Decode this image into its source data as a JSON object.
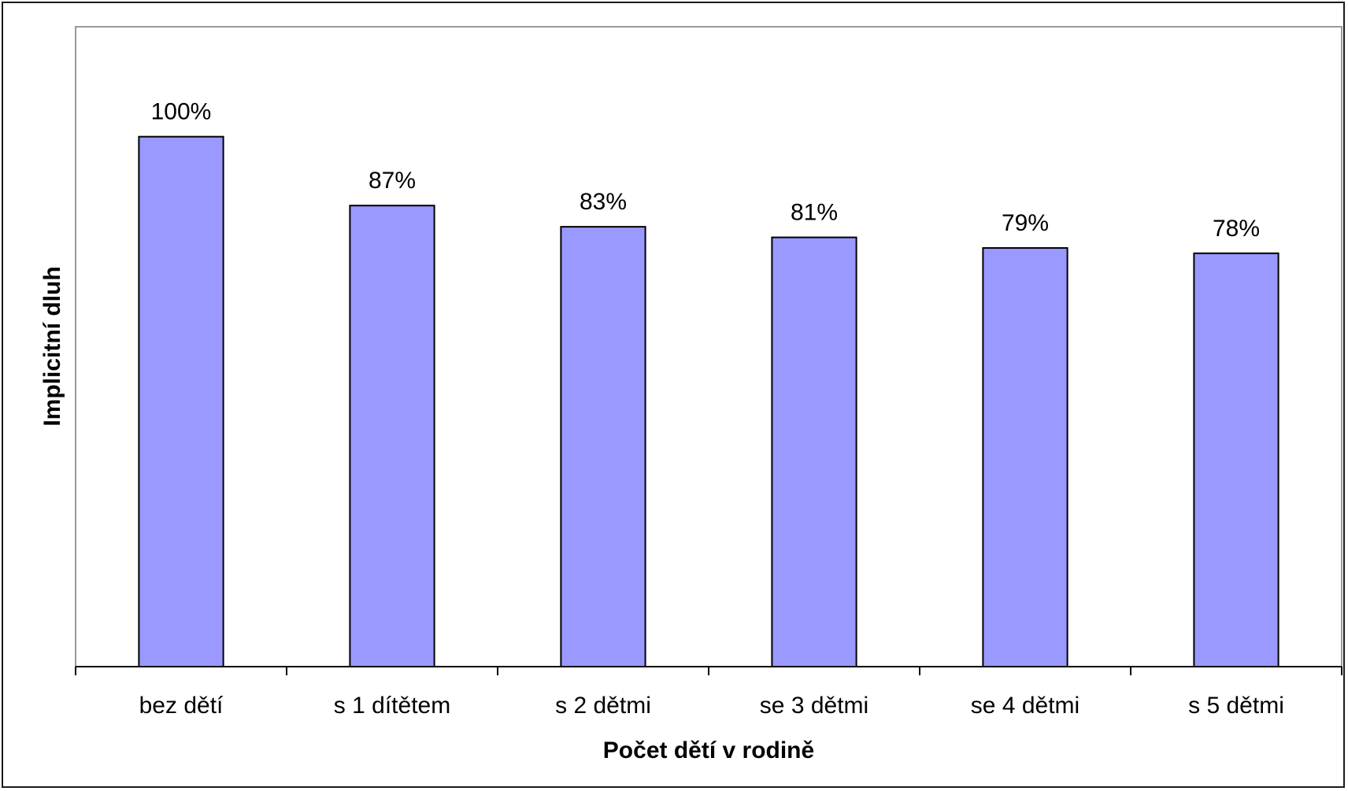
{
  "chart_data": {
    "type": "bar",
    "title": "",
    "xlabel": "Počet dětí v rodině",
    "ylabel": "Implicitní dluh",
    "categories": [
      "bez dětí",
      "s 1 dítětem",
      "s 2 dětmi",
      "se 3 dětmi",
      "se 4 dětmi",
      "s 5 dětmi"
    ],
    "values": [
      100,
      87,
      83,
      81,
      79,
      78
    ],
    "value_labels": [
      "100%",
      "87%",
      "83%",
      "81%",
      "79%",
      "78%"
    ],
    "unit": "%",
    "ylim": [
      0,
      120
    ],
    "grid": false,
    "legend": "none",
    "colors": {
      "bar_fill": "#9999ff",
      "bar_stroke": "#000000",
      "plot_border": "#999999",
      "axis": "#000000"
    }
  }
}
